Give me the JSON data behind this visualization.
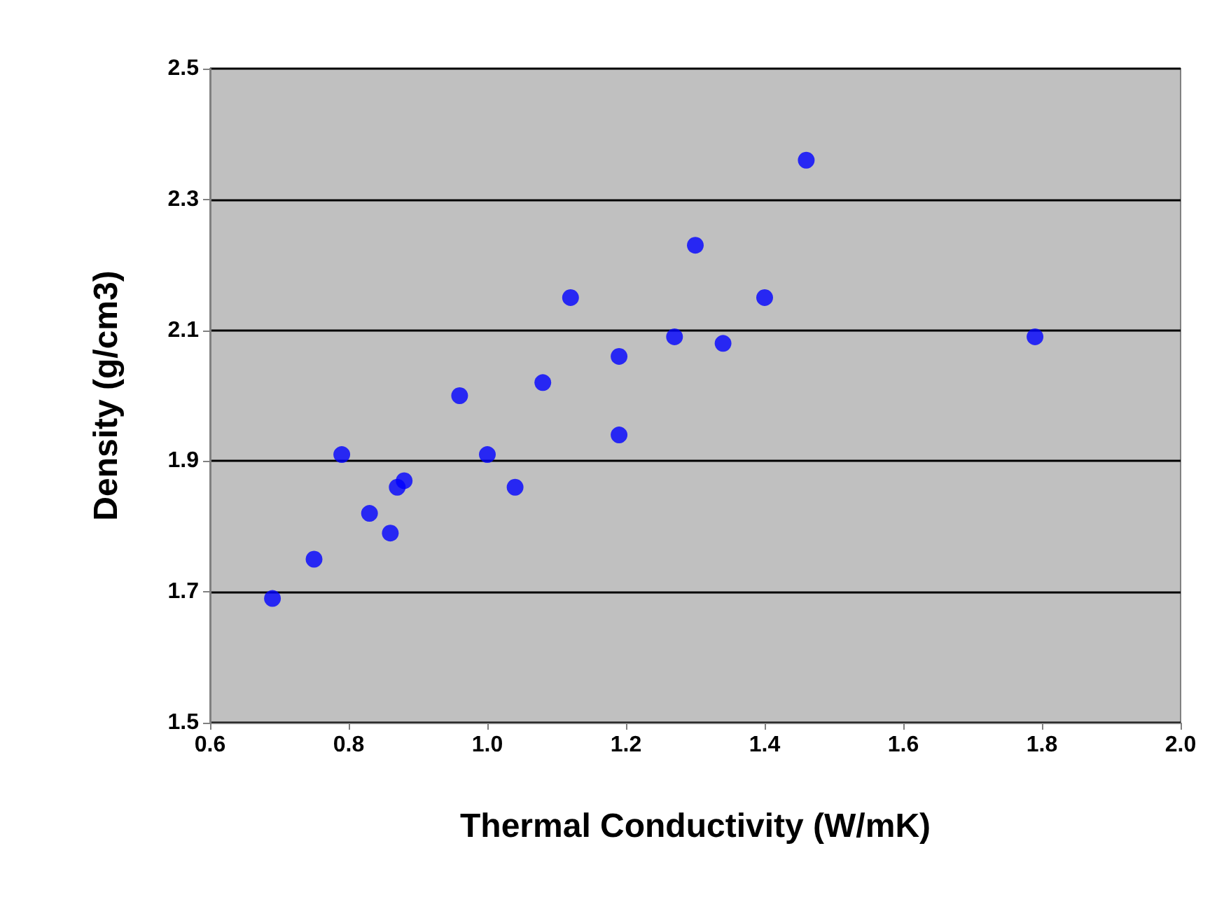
{
  "chart_data": {
    "type": "scatter",
    "xlabel": "Thermal Conductivity (W/mK)",
    "ylabel": "Density (g/cm3)",
    "x": [
      0.69,
      0.75,
      0.79,
      0.83,
      0.86,
      0.87,
      0.88,
      0.96,
      1.0,
      1.04,
      1.08,
      1.12,
      1.19,
      1.19,
      1.27,
      1.3,
      1.34,
      1.4,
      1.46,
      1.79
    ],
    "series": [
      {
        "color": "#0000ff",
        "values": [
          1.69,
          1.75,
          1.91,
          1.82,
          1.79,
          1.86,
          1.87,
          2.0,
          1.91,
          1.86,
          2.02,
          2.15,
          1.94,
          2.06,
          2.09,
          2.23,
          2.08,
          2.15,
          2.36,
          2.09
        ]
      }
    ],
    "xlim": [
      0.6,
      2.0
    ],
    "xticks": [
      0.6,
      0.8,
      {
        "value": 1,
        "label": "1.0"
      },
      1.2,
      1.4,
      1.6,
      1.8,
      {
        "value": 2,
        "label": "2.0"
      }
    ],
    "ylim": [
      1.5,
      2.5
    ],
    "yticks": [
      1.5,
      1.7,
      1.9,
      2.1,
      2.3,
      2.5
    ],
    "grid": "y",
    "marker": "circle"
  }
}
